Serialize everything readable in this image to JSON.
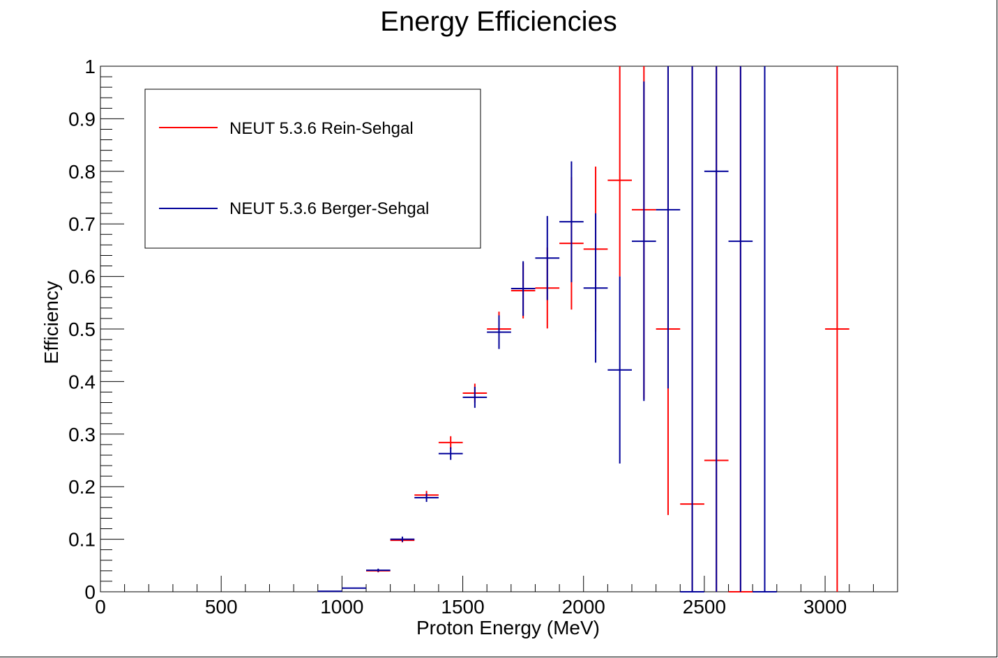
{
  "chart_data": {
    "type": "scatter",
    "title": "Energy Efficiencies",
    "xlabel": "Proton Energy (MeV)",
    "ylabel": "Efficiency",
    "xlim": [
      0,
      3300
    ],
    "ylim": [
      0,
      1
    ],
    "x_ticks": [
      0,
      500,
      1000,
      1500,
      2000,
      2500,
      3000
    ],
    "x_tick_labels": [
      "0",
      "500",
      "1000",
      "1500",
      "2000",
      "2500",
      "3000"
    ],
    "y_ticks": [
      0,
      0.1,
      0.2,
      0.3,
      0.4,
      0.5,
      0.6,
      0.7,
      0.8,
      0.9,
      1
    ],
    "y_tick_labels": [
      "0",
      "0.1",
      "0.2",
      "0.3",
      "0.4",
      "0.5",
      "0.6",
      "0.7",
      "0.8",
      "0.9",
      "1"
    ],
    "grid": false,
    "legend_position": "top-left",
    "bin_width": 100,
    "series": [
      {
        "name": "NEUT 5.3.6 Rein-Sehgal",
        "color": "#ff0000",
        "points": [
          {
            "x": 1150,
            "y": 0.04,
            "err_low": 0.003,
            "err_high": 0.003
          },
          {
            "x": 1250,
            "y": 0.098,
            "err_low": 0.004,
            "err_high": 0.004
          },
          {
            "x": 1350,
            "y": 0.184,
            "err_low": 0.008,
            "err_high": 0.008
          },
          {
            "x": 1450,
            "y": 0.284,
            "err_low": 0.012,
            "err_high": 0.012
          },
          {
            "x": 1550,
            "y": 0.378,
            "err_low": 0.018,
            "err_high": 0.018
          },
          {
            "x": 1650,
            "y": 0.5,
            "err_low": 0.033,
            "err_high": 0.033
          },
          {
            "x": 1750,
            "y": 0.573,
            "err_low": 0.053,
            "err_high": 0.053
          },
          {
            "x": 1850,
            "y": 0.578,
            "err_low": 0.077,
            "err_high": 0.077
          },
          {
            "x": 1950,
            "y": 0.663,
            "err_low": 0.126,
            "err_high": 0.126
          },
          {
            "x": 2050,
            "y": 0.652,
            "err_low": 0.157,
            "err_high": 0.157
          },
          {
            "x": 2150,
            "y": 0.783,
            "err_low": 0.183,
            "err_high": 0.217
          },
          {
            "x": 2250,
            "y": 0.727,
            "err_low": 0.36,
            "err_high": 0.273
          },
          {
            "x": 2350,
            "y": 0.5,
            "err_low": 0.354,
            "err_high": 0.5
          },
          {
            "x": 2450,
            "y": 0.167,
            "err_low": 0.167,
            "err_high": 0.833
          },
          {
            "x": 2550,
            "y": 0.25,
            "err_low": 0.25,
            "err_high": 0.75
          },
          {
            "x": 2650,
            "y": 0.0,
            "err_low": 0.0,
            "err_high": 1.0
          },
          {
            "x": 3050,
            "y": 0.5,
            "err_low": 0.5,
            "err_high": 0.5
          }
        ]
      },
      {
        "name": "NEUT 5.3.6 Berger-Sehgal",
        "color": "#000099",
        "points": [
          {
            "x": 950,
            "y": 0.001,
            "err_low": 0.001,
            "err_high": 0.001
          },
          {
            "x": 1050,
            "y": 0.007,
            "err_low": 0.001,
            "err_high": 0.001
          },
          {
            "x": 1150,
            "y": 0.041,
            "err_low": 0.003,
            "err_high": 0.003
          },
          {
            "x": 1250,
            "y": 0.1,
            "err_low": 0.005,
            "err_high": 0.005
          },
          {
            "x": 1350,
            "y": 0.179,
            "err_low": 0.008,
            "err_high": 0.008
          },
          {
            "x": 1450,
            "y": 0.263,
            "err_low": 0.012,
            "err_high": 0.012
          },
          {
            "x": 1550,
            "y": 0.37,
            "err_low": 0.02,
            "err_high": 0.02
          },
          {
            "x": 1650,
            "y": 0.494,
            "err_low": 0.032,
            "err_high": 0.032
          },
          {
            "x": 1750,
            "y": 0.577,
            "err_low": 0.052,
            "err_high": 0.052
          },
          {
            "x": 1850,
            "y": 0.635,
            "err_low": 0.08,
            "err_high": 0.08
          },
          {
            "x": 1950,
            "y": 0.704,
            "err_low": 0.115,
            "err_high": 0.115
          },
          {
            "x": 2050,
            "y": 0.578,
            "err_low": 0.142,
            "err_high": 0.142
          },
          {
            "x": 2150,
            "y": 0.422,
            "err_low": 0.178,
            "err_high": 0.178
          },
          {
            "x": 2250,
            "y": 0.667,
            "err_low": 0.304,
            "err_high": 0.304
          },
          {
            "x": 2350,
            "y": 0.727,
            "err_low": 0.34,
            "err_high": 0.273
          },
          {
            "x": 2450,
            "y": 0.0,
            "err_low": 0.0,
            "err_high": 1.0
          },
          {
            "x": 2550,
            "y": 0.8,
            "err_low": 0.8,
            "err_high": 0.2
          },
          {
            "x": 2650,
            "y": 0.667,
            "err_low": 0.667,
            "err_high": 0.333
          },
          {
            "x": 2750,
            "y": 0.0,
            "err_low": 0.0,
            "err_high": 1.0
          }
        ]
      }
    ]
  }
}
